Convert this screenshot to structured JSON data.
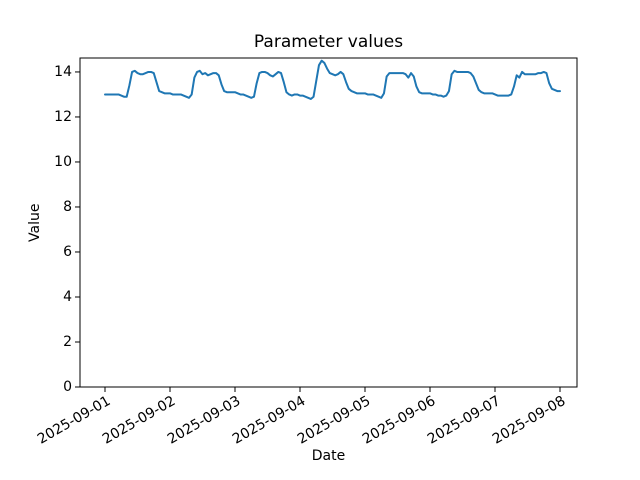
{
  "chart_data": {
    "type": "line",
    "title": "Parameter values",
    "xlabel": "Date",
    "ylabel": "Value",
    "x_start": "2025-09-01 00:00",
    "x_step_hours": 1,
    "x_tick_labels": [
      "2025-09-01",
      "2025-09-02",
      "2025-09-03",
      "2025-09-04",
      "2025-09-05",
      "2025-09-06",
      "2025-09-07",
      "2025-09-08"
    ],
    "x_tick_label_rotation_deg": 30,
    "y_ticks": [
      0,
      2,
      4,
      6,
      8,
      10,
      12,
      14
    ],
    "ylim": [
      0,
      14.62
    ],
    "grid": false,
    "legend": null,
    "background_color": "#ffffff",
    "frame_color": "#000000",
    "series": [
      {
        "name": "Parameter",
        "color": "#1f77b4",
        "line_width": 2,
        "values": [
          13.0,
          13.0,
          13.0,
          13.0,
          13.0,
          13.0,
          12.95,
          12.9,
          12.9,
          13.4,
          14.0,
          14.05,
          13.95,
          13.9,
          13.9,
          13.95,
          14.0,
          14.0,
          13.95,
          13.55,
          13.15,
          13.1,
          13.05,
          13.05,
          13.05,
          13.0,
          13.0,
          13.0,
          13.0,
          12.95,
          12.9,
          12.85,
          13.0,
          13.75,
          14.0,
          14.05,
          13.9,
          13.95,
          13.85,
          13.9,
          13.95,
          13.95,
          13.85,
          13.45,
          13.15,
          13.1,
          13.1,
          13.1,
          13.1,
          13.05,
          13.0,
          13.0,
          12.95,
          12.9,
          12.85,
          12.9,
          13.5,
          13.95,
          14.0,
          14.0,
          13.95,
          13.85,
          13.8,
          13.9,
          14.0,
          13.95,
          13.55,
          13.1,
          13.0,
          12.95,
          13.0,
          13.0,
          12.95,
          12.95,
          12.9,
          12.85,
          12.8,
          12.9,
          13.6,
          14.3,
          14.5,
          14.4,
          14.15,
          13.95,
          13.9,
          13.85,
          13.9,
          14.0,
          13.9,
          13.55,
          13.25,
          13.15,
          13.1,
          13.05,
          13.05,
          13.05,
          13.05,
          13.0,
          13.0,
          13.0,
          12.95,
          12.9,
          12.85,
          13.05,
          13.8,
          13.95,
          13.95,
          13.95,
          13.95,
          13.95,
          13.95,
          13.9,
          13.75,
          13.95,
          13.8,
          13.35,
          13.1,
          13.05,
          13.05,
          13.05,
          13.05,
          13.0,
          13.0,
          12.95,
          12.95,
          12.9,
          12.95,
          13.15,
          13.9,
          14.05,
          14.0,
          14.0,
          14.0,
          14.0,
          14.0,
          13.95,
          13.8,
          13.5,
          13.2,
          13.1,
          13.05,
          13.05,
          13.05,
          13.05,
          13.0,
          12.95,
          12.95,
          12.95,
          12.95,
          12.95,
          13.0,
          13.35,
          13.85,
          13.75,
          14.0,
          13.9,
          13.9,
          13.9,
          13.9,
          13.9,
          13.95,
          13.95,
          14.0,
          13.95,
          13.5,
          13.25,
          13.2,
          13.15,
          13.15
        ]
      }
    ]
  }
}
